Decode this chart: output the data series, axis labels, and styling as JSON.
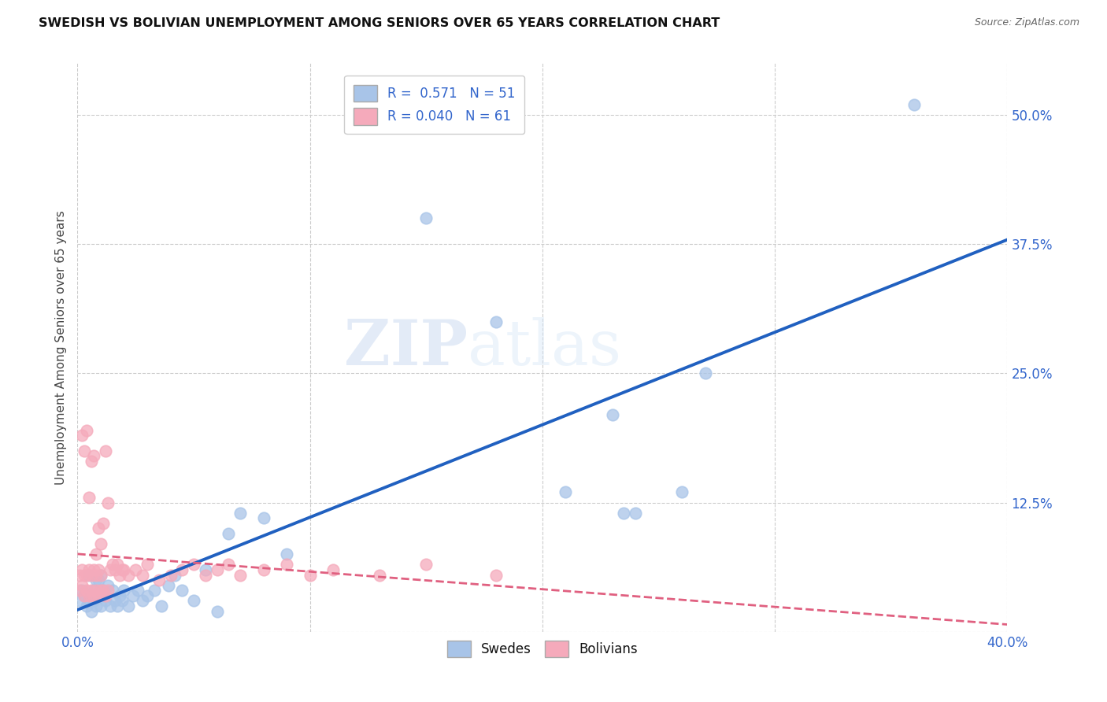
{
  "title": "SWEDISH VS BOLIVIAN UNEMPLOYMENT AMONG SENIORS OVER 65 YEARS CORRELATION CHART",
  "source": "Source: ZipAtlas.com",
  "ylabel": "Unemployment Among Seniors over 65 years",
  "xlim": [
    0.0,
    0.4
  ],
  "ylim": [
    0.0,
    0.55
  ],
  "xticks": [
    0.0,
    0.1,
    0.2,
    0.3,
    0.4
  ],
  "xticklabels": [
    "0.0%",
    "",
    "",
    "",
    "40.0%"
  ],
  "yticks": [
    0.0,
    0.125,
    0.25,
    0.375,
    0.5
  ],
  "yticklabels": [
    "",
    "12.5%",
    "25.0%",
    "37.5%",
    "50.0%"
  ],
  "swede_color": "#a8c4e8",
  "bolivian_color": "#f5aabb",
  "swede_line_color": "#2060c0",
  "bolivian_line_color": "#e06080",
  "R_swede": 0.571,
  "N_swede": 51,
  "R_bolivian": 0.04,
  "N_bolivian": 61,
  "swede_x": [
    0.001,
    0.002,
    0.003,
    0.004,
    0.005,
    0.005,
    0.006,
    0.007,
    0.007,
    0.008,
    0.008,
    0.009,
    0.009,
    0.01,
    0.01,
    0.011,
    0.012,
    0.013,
    0.014,
    0.015,
    0.016,
    0.017,
    0.018,
    0.019,
    0.02,
    0.022,
    0.024,
    0.026,
    0.028,
    0.03,
    0.033,
    0.036,
    0.039,
    0.042,
    0.045,
    0.05,
    0.055,
    0.06,
    0.065,
    0.07,
    0.08,
    0.09,
    0.15,
    0.18,
    0.21,
    0.23,
    0.235,
    0.24,
    0.26,
    0.27,
    0.36
  ],
  "swede_y": [
    0.03,
    0.04,
    0.035,
    0.025,
    0.03,
    0.055,
    0.02,
    0.04,
    0.03,
    0.025,
    0.05,
    0.035,
    0.05,
    0.025,
    0.055,
    0.04,
    0.03,
    0.045,
    0.025,
    0.04,
    0.03,
    0.025,
    0.035,
    0.03,
    0.04,
    0.025,
    0.035,
    0.04,
    0.03,
    0.035,
    0.04,
    0.025,
    0.045,
    0.055,
    0.04,
    0.03,
    0.06,
    0.02,
    0.095,
    0.115,
    0.11,
    0.075,
    0.4,
    0.3,
    0.135,
    0.21,
    0.115,
    0.115,
    0.135,
    0.25,
    0.51
  ],
  "bolivian_x": [
    0.001,
    0.001,
    0.002,
    0.002,
    0.002,
    0.003,
    0.003,
    0.003,
    0.004,
    0.004,
    0.004,
    0.005,
    0.005,
    0.005,
    0.006,
    0.006,
    0.006,
    0.007,
    0.007,
    0.007,
    0.008,
    0.008,
    0.008,
    0.009,
    0.009,
    0.009,
    0.01,
    0.01,
    0.01,
    0.011,
    0.011,
    0.012,
    0.012,
    0.013,
    0.013,
    0.014,
    0.015,
    0.016,
    0.017,
    0.018,
    0.019,
    0.02,
    0.022,
    0.025,
    0.028,
    0.03,
    0.035,
    0.04,
    0.045,
    0.05,
    0.055,
    0.06,
    0.065,
    0.07,
    0.08,
    0.09,
    0.1,
    0.11,
    0.13,
    0.15,
    0.18
  ],
  "bolivian_y": [
    0.04,
    0.055,
    0.045,
    0.06,
    0.19,
    0.035,
    0.055,
    0.175,
    0.04,
    0.055,
    0.195,
    0.035,
    0.06,
    0.13,
    0.04,
    0.055,
    0.165,
    0.035,
    0.06,
    0.17,
    0.04,
    0.055,
    0.075,
    0.035,
    0.06,
    0.1,
    0.04,
    0.055,
    0.085,
    0.04,
    0.105,
    0.035,
    0.175,
    0.04,
    0.125,
    0.06,
    0.065,
    0.06,
    0.065,
    0.055,
    0.06,
    0.06,
    0.055,
    0.06,
    0.055,
    0.065,
    0.05,
    0.055,
    0.06,
    0.065,
    0.055,
    0.06,
    0.065,
    0.055,
    0.06,
    0.065,
    0.055,
    0.06,
    0.055,
    0.065,
    0.055
  ],
  "watermark_zip": "ZIP",
  "watermark_atlas": "atlas",
  "background_color": "#ffffff",
  "grid_color": "#cccccc"
}
